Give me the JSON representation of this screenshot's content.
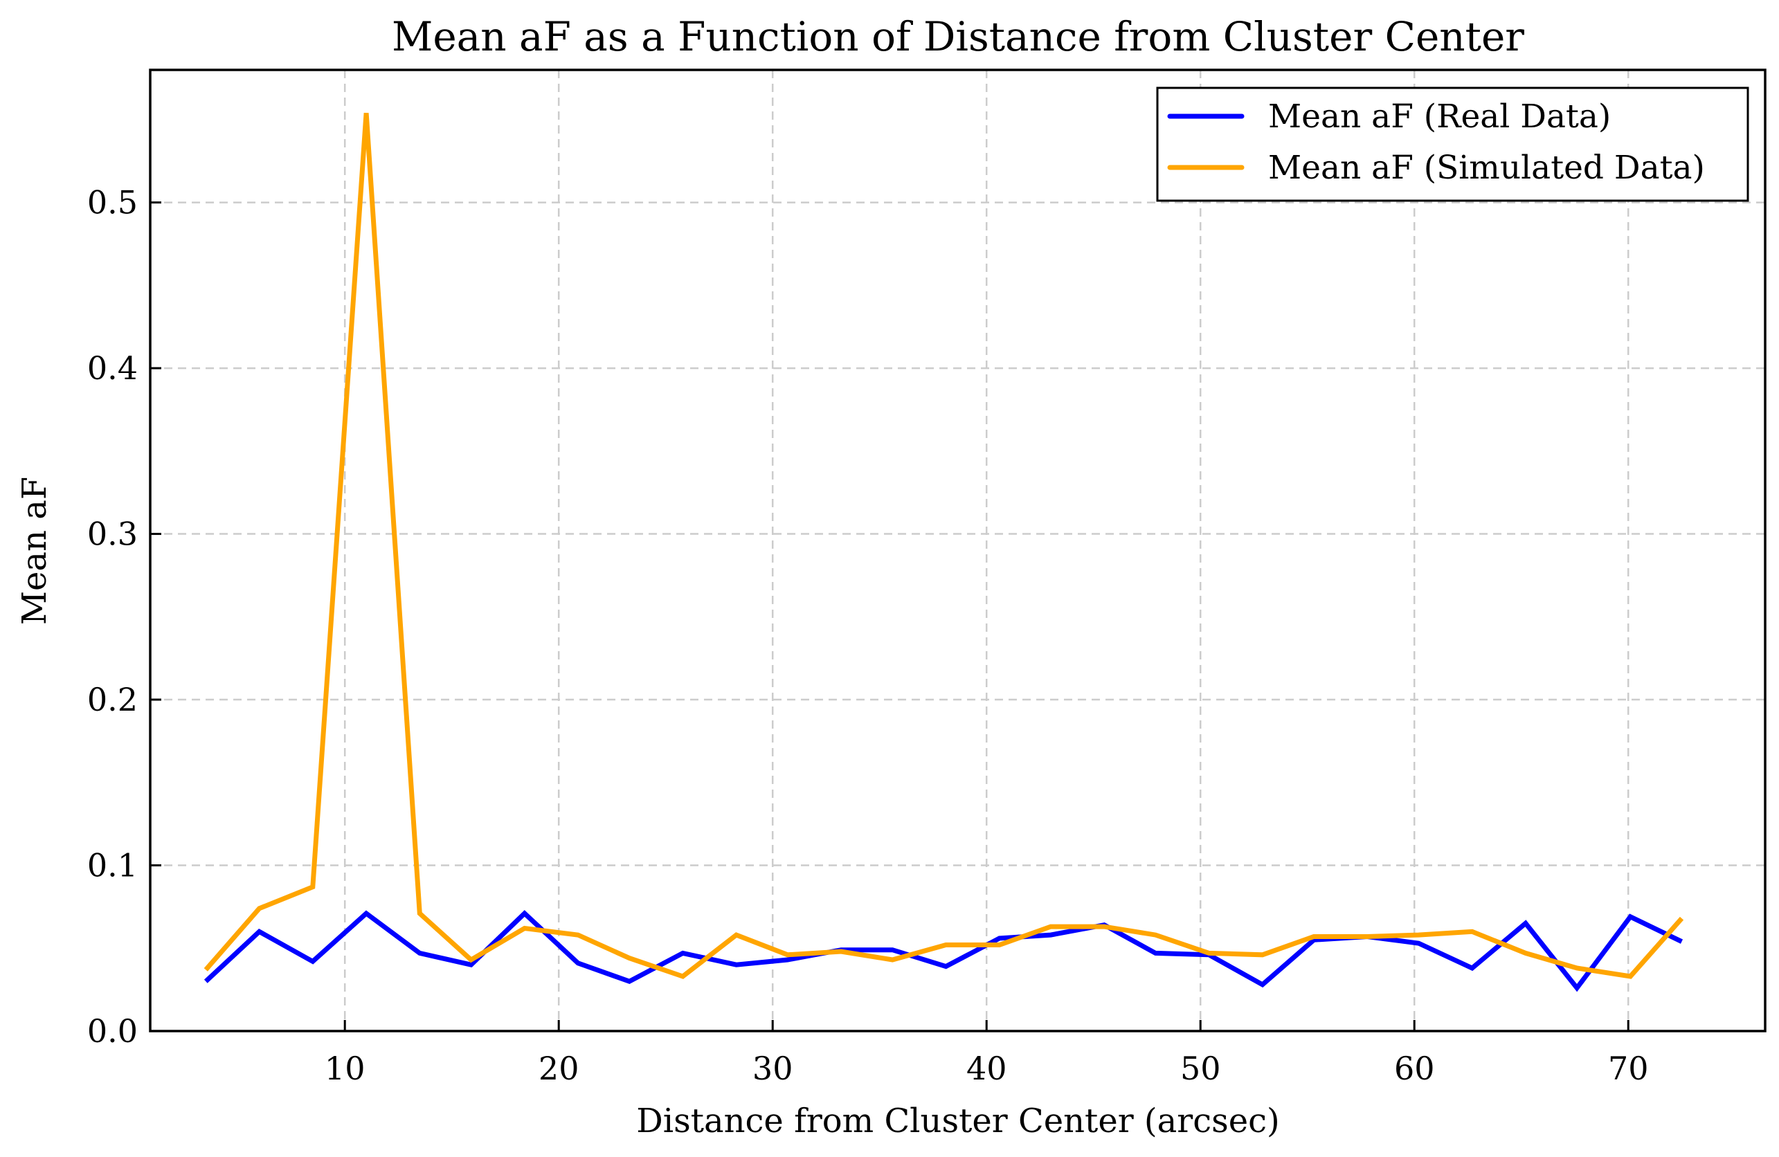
{
  "chart_data": {
    "type": "line",
    "title": "Mean aF as a Function of Distance from Cluster Center",
    "xlabel": "Distance from Cluster Center (arcsec)",
    "ylabel": "Mean aF",
    "xlim": [
      0.9,
      76.4
    ],
    "ylim": [
      0.0,
      0.58
    ],
    "xticks": [
      10,
      20,
      30,
      40,
      50,
      60,
      70
    ],
    "yticks": [
      0.0,
      0.1,
      0.2,
      0.3,
      0.4,
      0.5
    ],
    "xtick_labels": [
      "10",
      "20",
      "30",
      "40",
      "50",
      "60",
      "70"
    ],
    "ytick_labels": [
      "0.0",
      "0.1",
      "0.2",
      "0.3",
      "0.4",
      "0.5"
    ],
    "grid": true,
    "legend_position": "top-right",
    "x": [
      3.5,
      6.0,
      8.5,
      11.0,
      13.5,
      15.9,
      18.4,
      20.9,
      23.3,
      25.8,
      28.3,
      30.7,
      33.2,
      35.6,
      38.1,
      40.6,
      43.0,
      45.5,
      47.9,
      50.4,
      52.9,
      55.3,
      57.8,
      60.2,
      62.7,
      65.2,
      67.6,
      70.1,
      72.5
    ],
    "series": [
      {
        "name": "Mean aF (Real Data)",
        "color": "#0000ff",
        "values": [
          0.03,
          0.06,
          0.042,
          0.071,
          0.047,
          0.04,
          0.071,
          0.041,
          0.03,
          0.047,
          0.04,
          0.043,
          0.049,
          0.049,
          0.039,
          0.056,
          0.058,
          0.064,
          0.047,
          0.046,
          0.028,
          0.055,
          0.057,
          0.053,
          0.038,
          0.065,
          0.026,
          0.069,
          0.054
        ]
      },
      {
        "name": "Mean aF (Simulated Data)",
        "color": "#ffa500",
        "values": [
          0.037,
          0.074,
          0.087,
          0.554,
          0.071,
          0.043,
          0.062,
          0.058,
          0.044,
          0.033,
          0.058,
          0.046,
          0.048,
          0.043,
          0.052,
          0.052,
          0.063,
          0.063,
          0.058,
          0.047,
          0.046,
          0.057,
          0.057,
          0.058,
          0.06,
          0.047,
          0.038,
          0.033,
          0.068
        ]
      }
    ]
  }
}
